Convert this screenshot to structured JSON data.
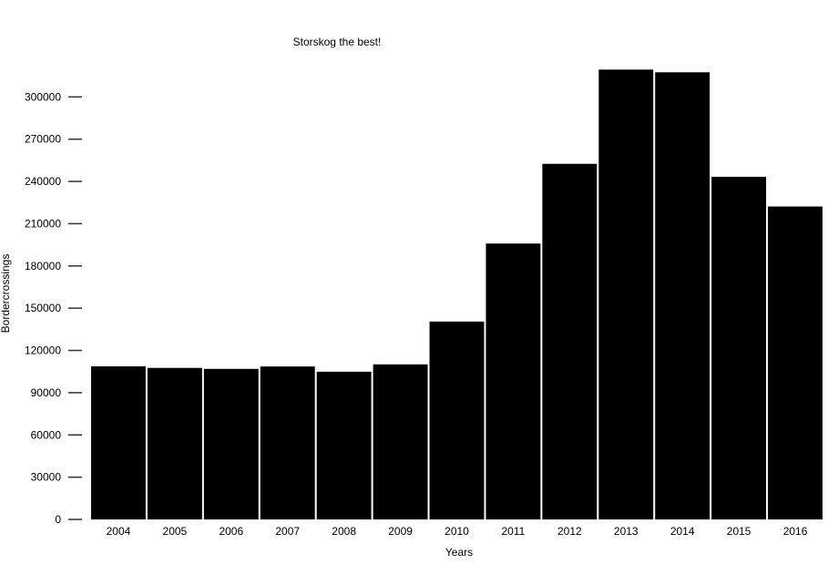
{
  "chart_data": {
    "type": "bar",
    "title": "Storskog the best!",
    "xlabel": "Years",
    "ylabel": "Bordercrossings",
    "categories": [
      "2004",
      "2005",
      "2006",
      "2007",
      "2008",
      "2009",
      "2010",
      "2011",
      "2012",
      "2013",
      "2014",
      "2015",
      "2016"
    ],
    "values": [
      108700,
      107600,
      106900,
      108600,
      104900,
      110100,
      140500,
      195900,
      252500,
      319400,
      317500,
      243300,
      222200
    ],
    "ylim": [
      0,
      330000
    ],
    "yticks": [
      0,
      30000,
      60000,
      90000,
      120000,
      150000,
      180000,
      210000,
      240000,
      270000,
      300000
    ],
    "grid": false,
    "legend": "none",
    "colors": {
      "bar": "#000000",
      "background": "#ffffff"
    }
  }
}
